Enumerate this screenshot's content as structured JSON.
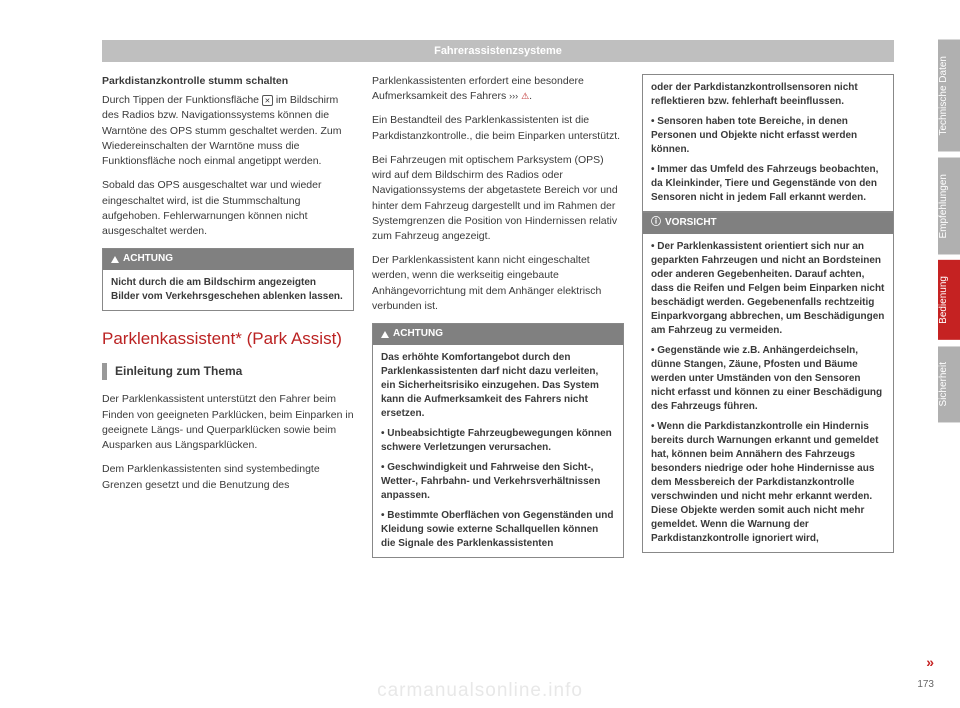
{
  "header": {
    "title": "Fahrerassistenzsysteme"
  },
  "col1": {
    "h1": "Parkdistanzkontrolle stumm schalten",
    "p1a": "Durch Tippen der Funktionsfläche ",
    "icon": "✕",
    "p1b": " im Bildschirm des Radios bzw. Navigationssystems können die Warntöne des OPS stumm geschaltet werden. Zum Wiedereinschalten der Warntöne muss die Funktionsfläche noch einmal angetippt werden.",
    "p2": "Sobald das OPS ausgeschaltet war und wieder eingeschaltet wird, ist die Stummschaltung aufgehoben. Fehlerwarnungen können nicht ausgeschaltet werden.",
    "achtung_label": "ACHTUNG",
    "achtung1": "Nicht durch die am Bildschirm angezeigten Bilder vom Verkehrsgeschehen ablenken lassen.",
    "h2": "Parklenkassistent* (Park Assist)",
    "h3": "Einleitung zum Thema",
    "p3": "Der Parklenkassistent unterstützt den Fahrer beim Finden von geeigneten Parklücken, beim Einparken in geeignete Längs- und Querparklücken sowie beim Ausparken aus Längsparklücken.",
    "p4": "Dem Parklenkassistenten sind systembedingte Grenzen gesetzt und die Benutzung des"
  },
  "col2": {
    "p1a": "Parklenkassistenten erfordert eine besondere Aufmerksamkeit des Fahrers ",
    "link": "›››",
    "warn": "⚠",
    "p1b": ".",
    "p2": "Ein Bestandteil des Parklenkassistenten ist die Parkdistanzkontrolle., die beim Einparken unterstützt.",
    "p3": "Bei Fahrzeugen mit optischem Parksystem (OPS) wird auf dem Bildschirm des Radios oder Navigationssystems der abgetastete Bereich vor und hinter dem Fahrzeug dargestellt und im Rahmen der Systemgrenzen die Position von Hindernissen relativ zum Fahrzeug angezeigt.",
    "p4": "Der Parklenkassistent kann nicht eingeschaltet werden, wenn die werkseitig eingebaute Anhängevorrichtung mit dem Anhänger elektrisch verbunden ist.",
    "achtung_label": "ACHTUNG",
    "b1": "Das erhöhte Komfortangebot durch den Parklenkassistenten darf nicht dazu verleiten, ein Sicherheitsrisiko einzugehen. Das System kann die Aufmerksamkeit des Fahrers nicht ersetzen.",
    "b2": "Unbeabsichtigte Fahrzeugbewegungen können schwere Verletzungen verursachen.",
    "b3": "Geschwindigkeit und Fahrweise den Sicht-, Wetter-, Fahrbahn- und Verkehrsverhältnissen anpassen.",
    "b4": "Bestimmte Oberflächen von Gegenständen und Kleidung sowie externe Schallquellen können die Signale des Parklenkassistenten"
  },
  "col3": {
    "cont1": "oder der Parkdistanzkontrollsensoren nicht reflektieren bzw. fehlerhaft beeinflussen.",
    "cont2": "Sensoren haben tote Bereiche, in denen Personen und Objekte nicht erfasst werden können.",
    "cont3": "Immer das Umfeld des Fahrzeugs beobachten, da Kleinkinder, Tiere und Gegenstände von den Sensoren nicht in jedem Fall erkannt werden.",
    "vorsicht_label": "VORSICHT",
    "v1": "Der Parklenkassistent orientiert sich nur an geparkten Fahrzeugen und nicht an Bordsteinen oder anderen Gegebenheiten. Darauf achten, dass die Reifen und Felgen beim Einparken nicht beschädigt werden. Gegebenenfalls rechtzeitig Einparkvorgang abbrechen, um Beschädigungen am Fahrzeug zu vermeiden.",
    "v2": "Gegenstände wie z.B. Anhängerdeichseln, dünne Stangen, Zäune, Pfosten und Bäume werden unter Umständen von den Sensoren nicht erfasst und können zu einer Beschädigung des Fahrzeugs führen.",
    "v3": "Wenn die Parkdistanzkontrolle ein Hindernis bereits durch Warnungen erkannt und gemeldet hat, können beim Annähern des Fahrzeugs besonders niedrige oder hohe Hindernisse aus dem Messbereich der Parkdistanzkontrolle verschwinden und nicht mehr erkannt werden. Diese Objekte werden somit auch nicht mehr gemeldet. Wenn die Warnung der Parkdistanzkontrolle ignoriert wird,"
  },
  "tabs": {
    "t1": "Technische Daten",
    "t2": "Empfehlungen",
    "t3": "Bedienung",
    "t4": "Sicherheit"
  },
  "page_number": "173",
  "continue_marker": "»",
  "watermark": "carmanualsonline.info"
}
